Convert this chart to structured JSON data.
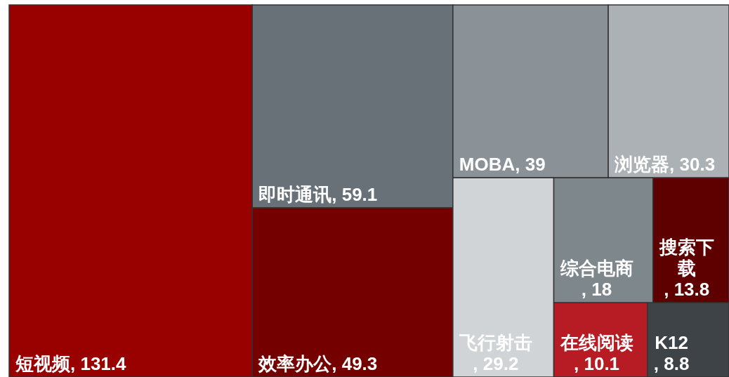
{
  "chart_data": {
    "type": "other",
    "categories": [
      "短视频",
      "即时通讯",
      "效率办公",
      "MOBA",
      "浏览器",
      "飞行射击",
      "综合电商",
      "搜索下载",
      "在线阅读",
      "K12"
    ],
    "values": [
      131.4,
      59.1,
      49.3,
      39,
      30.3,
      29.2,
      18,
      13.8,
      10.1,
      8.8
    ],
    "value_labels": [
      ", 131.4",
      ", 59.1",
      ", 49.3",
      ", 39",
      ", 30.3",
      ", 29.2",
      ", 18",
      ", 13.8",
      ", 10.1",
      ", 8.8"
    ],
    "colors": [
      "#990000",
      "#687078",
      "#740000",
      "#8a9197",
      "#abb1b4",
      "#d1d4d7",
      "#7e878c",
      "#5f0000",
      "#b71c24",
      "#3e4347"
    ]
  }
}
